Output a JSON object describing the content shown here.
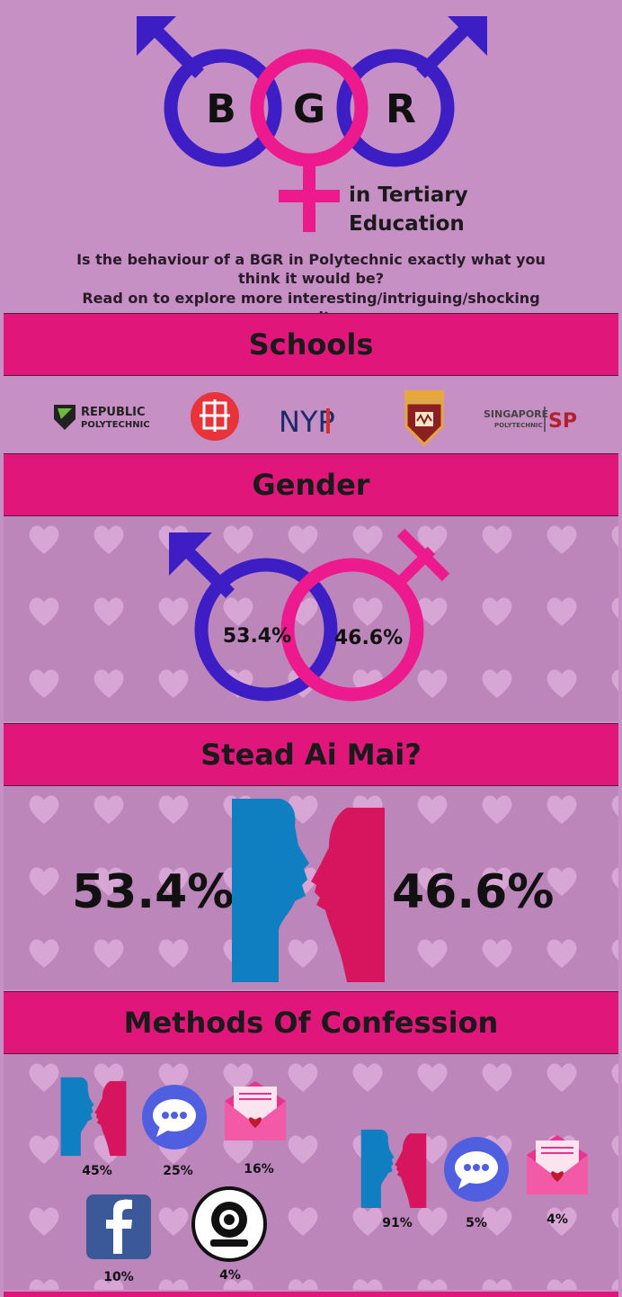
{
  "header": {
    "letters": [
      "B",
      "G",
      "R"
    ],
    "subtitle_line1": "in Tertiary",
    "subtitle_line2": "Education",
    "intro_line1": "Is the behaviour of a BGR in Polytechnic exactly what you think it would be?",
    "intro_line2": "Read on to explore more interesting/intriguing/shocking results"
  },
  "sections": {
    "schools": "Schools",
    "gender": "Gender",
    "stead": "Stead Ai Mai?",
    "methods": "Methods Of Confession"
  },
  "schools": {
    "rp_line1": "REPUBLIC",
    "rp_line2": "POLYTECHNIC",
    "nyp": "NYP",
    "sp_line1": "SINGAPORE",
    "sp_line2": "POLYTECHNIC",
    "sp_abbr": "SP"
  },
  "gender": {
    "male_pct": "53.4%",
    "female_pct": "46.6%"
  },
  "stead": {
    "yes_pct": "53.4%",
    "no_pct": "46.6%"
  },
  "methods_left": [
    {
      "icon": "face-to-face-icon",
      "pct": "45%"
    },
    {
      "icon": "chat-bubble-icon",
      "pct": "25%"
    },
    {
      "icon": "love-letter-icon",
      "pct": "16%"
    },
    {
      "icon": "facebook-icon",
      "pct": "10%"
    },
    {
      "icon": "webcam-icon",
      "pct": "4%"
    }
  ],
  "methods_right": [
    {
      "icon": "face-to-face-icon",
      "pct": "91%"
    },
    {
      "icon": "chat-bubble-icon",
      "pct": "5%"
    },
    {
      "icon": "love-letter-icon",
      "pct": "4%"
    }
  ],
  "colors": {
    "background": "#c690c4",
    "banner": "#e0167a",
    "male": "#3d1dc4",
    "female": "#ec1a8c",
    "face_blue": "#0f7fc2",
    "face_pink": "#d6155e"
  }
}
